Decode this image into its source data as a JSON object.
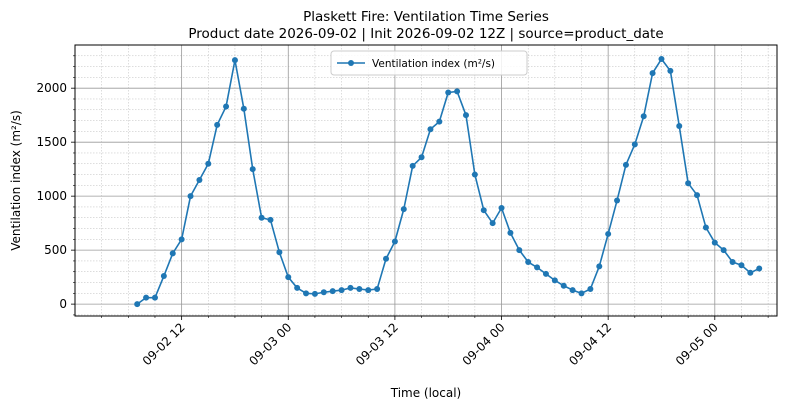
{
  "chart_data": {
    "type": "line",
    "title": "Plaskett Fire: Ventilation Time Series",
    "subtitle": "Product date 2026-09-02 | Init 2026-09-02 12Z | source=product_date",
    "xlabel": "Time (local)",
    "ylabel": "Ventilation index (m²/s)",
    "x_type": "datetime",
    "x_range": [
      "2026-09-02 00:00",
      "2026-09-05 07:00"
    ],
    "ylim": [
      -110,
      2400
    ],
    "y_ticks": [
      0,
      500,
      1000,
      1500,
      2000
    ],
    "x_ticks": [
      {
        "value": "2026-09-02 12:00",
        "label": "09-02 12"
      },
      {
        "value": "2026-09-03 00:00",
        "label": "09-03 00"
      },
      {
        "value": "2026-09-03 12:00",
        "label": "09-03 12"
      },
      {
        "value": "2026-09-04 00:00",
        "label": "09-04 00"
      },
      {
        "value": "2026-09-04 12:00",
        "label": "09-04 12"
      },
      {
        "value": "2026-09-05 00:00",
        "label": "09-05 00"
      }
    ],
    "grid": true,
    "legend_position": "upper center",
    "series": [
      {
        "name": "Ventilation index (m²/s)",
        "color": "#1f77b4",
        "marker": "circle",
        "x": [
          "2026-09-02 07:00",
          "2026-09-02 08:00",
          "2026-09-02 09:00",
          "2026-09-02 10:00",
          "2026-09-02 11:00",
          "2026-09-02 12:00",
          "2026-09-02 13:00",
          "2026-09-02 14:00",
          "2026-09-02 15:00",
          "2026-09-02 16:00",
          "2026-09-02 17:00",
          "2026-09-02 18:00",
          "2026-09-02 19:00",
          "2026-09-02 20:00",
          "2026-09-02 21:00",
          "2026-09-02 22:00",
          "2026-09-02 23:00",
          "2026-09-03 00:00",
          "2026-09-03 01:00",
          "2026-09-03 02:00",
          "2026-09-03 03:00",
          "2026-09-03 04:00",
          "2026-09-03 05:00",
          "2026-09-03 06:00",
          "2026-09-03 07:00",
          "2026-09-03 08:00",
          "2026-09-03 09:00",
          "2026-09-03 10:00",
          "2026-09-03 11:00",
          "2026-09-03 12:00",
          "2026-09-03 13:00",
          "2026-09-03 14:00",
          "2026-09-03 15:00",
          "2026-09-03 16:00",
          "2026-09-03 17:00",
          "2026-09-03 18:00",
          "2026-09-03 19:00",
          "2026-09-03 20:00",
          "2026-09-03 21:00",
          "2026-09-03 22:00",
          "2026-09-03 23:00",
          "2026-09-04 00:00",
          "2026-09-04 01:00",
          "2026-09-04 02:00",
          "2026-09-04 03:00",
          "2026-09-04 04:00",
          "2026-09-04 05:00",
          "2026-09-04 06:00",
          "2026-09-04 07:00",
          "2026-09-04 08:00",
          "2026-09-04 09:00",
          "2026-09-04 10:00",
          "2026-09-04 11:00",
          "2026-09-04 12:00",
          "2026-09-04 13:00",
          "2026-09-04 14:00",
          "2026-09-04 15:00",
          "2026-09-04 16:00",
          "2026-09-04 17:00",
          "2026-09-04 18:00",
          "2026-09-04 19:00",
          "2026-09-04 20:00",
          "2026-09-04 21:00",
          "2026-09-04 22:00",
          "2026-09-04 23:00",
          "2026-09-05 00:00",
          "2026-09-05 01:00",
          "2026-09-05 02:00",
          "2026-09-05 03:00",
          "2026-09-05 04:00",
          "2026-09-05 05:00"
        ],
        "values": [
          0,
          60,
          60,
          260,
          470,
          600,
          1000,
          1150,
          1300,
          1660,
          1830,
          2260,
          1810,
          1250,
          800,
          780,
          480,
          250,
          150,
          100,
          95,
          110,
          120,
          130,
          150,
          140,
          130,
          140,
          420,
          580,
          880,
          1280,
          1360,
          1620,
          1690,
          1960,
          1970,
          1750,
          1200,
          870,
          750,
          890,
          660,
          500,
          390,
          340,
          280,
          220,
          170,
          130,
          100,
          140,
          350,
          650,
          960,
          1290,
          1480,
          1740,
          2140,
          2270,
          2160,
          1650,
          1120,
          1010,
          710,
          570,
          500,
          390,
          360,
          290,
          330
        ]
      }
    ]
  }
}
